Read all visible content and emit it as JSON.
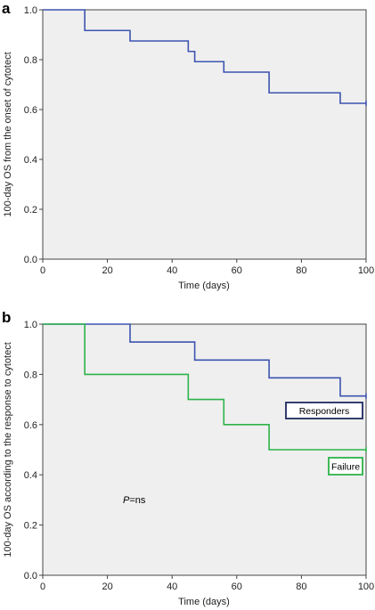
{
  "chart_data": [
    {
      "type": "line",
      "panel": "a",
      "ylabel": "100-day OS from the onset of cytotect",
      "xlabel": "Time (days)",
      "xlim": [
        0,
        100
      ],
      "ylim": [
        0,
        1.0
      ],
      "xticks": [
        "0",
        "20",
        "40",
        "60",
        "80",
        "100"
      ],
      "yticks": [
        "0.0",
        "0.2",
        "0.4",
        "0.6",
        "0.8",
        "1.0"
      ],
      "grid": false,
      "series": [
        {
          "color": "#3d54b0",
          "step": true,
          "x": [
            0,
            13,
            27,
            45,
            47,
            56,
            70,
            92,
            100
          ],
          "y": [
            1.0,
            0.917,
            0.875,
            0.833,
            0.792,
            0.75,
            0.667,
            0.625,
            0.625
          ],
          "censor": [
            [
              100,
              0.625
            ]
          ]
        }
      ]
    },
    {
      "type": "line",
      "panel": "b",
      "ylabel": "100-day OS according to the response to cytotect",
      "xlabel": "Time (days)",
      "xlim": [
        0,
        100
      ],
      "ylim": [
        0,
        1.0
      ],
      "xticks": [
        "0",
        "20",
        "40",
        "60",
        "80",
        "100"
      ],
      "yticks": [
        "0.0",
        "0.2",
        "0.4",
        "0.6",
        "0.8",
        "1.0"
      ],
      "grid": false,
      "annotation": {
        "italic": "P",
        "rest": "=ns"
      },
      "series": [
        {
          "name": "Responders",
          "color": "#3d54b0",
          "box_border": "#1e2a5e",
          "step": true,
          "x": [
            0,
            27,
            47,
            70,
            92,
            100
          ],
          "y": [
            1.0,
            0.929,
            0.857,
            0.786,
            0.714,
            0.714
          ],
          "censor": [
            [
              100,
              0.714
            ]
          ]
        },
        {
          "name": "Failure",
          "color": "#2db34a",
          "box_border": "#2db34a",
          "step": true,
          "x": [
            0,
            13,
            45,
            56,
            70,
            100
          ],
          "y": [
            1.0,
            0.8,
            0.7,
            0.6,
            0.5,
            0.5
          ],
          "censor": [
            [
              100,
              0.5
            ]
          ]
        }
      ]
    }
  ]
}
